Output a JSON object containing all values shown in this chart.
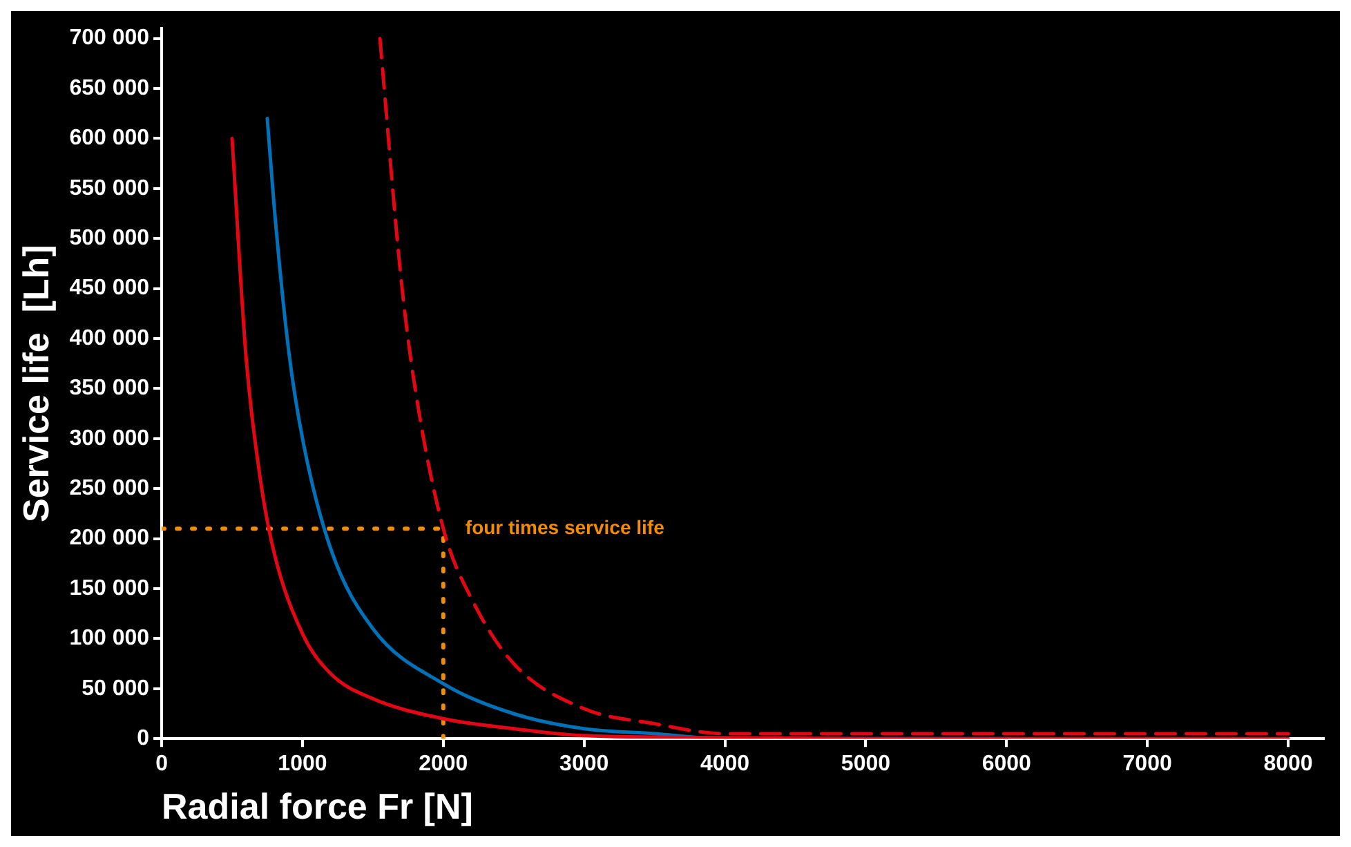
{
  "chart_data": {
    "type": "line",
    "xlabel": "Radial force Fr [N]",
    "ylabel": "Service life  [Lh]",
    "xlim": [
      0,
      8250
    ],
    "xticks": [
      0,
      1000,
      2000,
      3000,
      4000,
      5000,
      6000,
      7000,
      8000
    ],
    "ylim": [
      0,
      710000
    ],
    "yticks": [
      {
        "value": 0,
        "label": "0"
      },
      {
        "value": 50000,
        "label": "50 000"
      },
      {
        "value": 100000,
        "label": "100 000"
      },
      {
        "value": 150000,
        "label": "150 000"
      },
      {
        "value": 200000,
        "label": "200 000"
      },
      {
        "value": 250000,
        "label": "250 000"
      },
      {
        "value": 300000,
        "label": "300 000"
      },
      {
        "value": 350000,
        "label": "350 000"
      },
      {
        "value": 400000,
        "label": "400 000"
      },
      {
        "value": 450000,
        "label": "450 000"
      },
      {
        "value": 500000,
        "label": "500 000"
      },
      {
        "value": 550000,
        "label": "550 000"
      },
      {
        "value": 600000,
        "label": "600 000"
      },
      {
        "value": 650000,
        "label": "650 000"
      },
      {
        "value": 700000,
        "label": "700 000"
      }
    ],
    "grid": false,
    "legend": false,
    "marker": "none",
    "series": [
      {
        "color": "#e30613",
        "line_style": "solid",
        "x": [
          500,
          600,
          700,
          800,
          1000,
          1200,
          1500,
          2000,
          2500,
          3000,
          4000,
          5000,
          6000,
          8000
        ],
        "values": [
          600000,
          380000,
          260000,
          185000,
          105000,
          65000,
          40000,
          20000,
          10000,
          3000,
          1000,
          0,
          0,
          0
        ]
      },
      {
        "color": "#0072b9",
        "line_style": "solid",
        "x": [
          750,
          800,
          900,
          1000,
          1200,
          1500,
          2000,
          2500,
          3000,
          3500,
          4000,
          5000,
          6000
        ],
        "values": [
          620000,
          530000,
          390000,
          300000,
          190000,
          110000,
          55000,
          25000,
          10000,
          5000,
          0,
          0,
          0
        ]
      },
      {
        "color": "#e30613",
        "line_style": "dashed",
        "x": [
          1550,
          1700,
          1800,
          2000,
          2200,
          2500,
          3000,
          3500,
          4000,
          4200,
          5000,
          6000,
          8000
        ],
        "values": [
          700000,
          460000,
          350000,
          210000,
          140000,
          75000,
          30000,
          15000,
          5000,
          5000,
          5000,
          5000,
          5000
        ]
      },
      {
        "color": "#f28c00",
        "line_style": "dotted",
        "x": [
          0,
          2000
        ],
        "values": [
          210000,
          210000
        ]
      },
      {
        "color": "#f28c00",
        "line_style": "dotted",
        "x": [
          2000,
          2000
        ],
        "values": [
          0,
          210000
        ]
      }
    ],
    "annotations": [
      {
        "text": "four times service life",
        "x": 2000,
        "y": 210000
      }
    ]
  }
}
